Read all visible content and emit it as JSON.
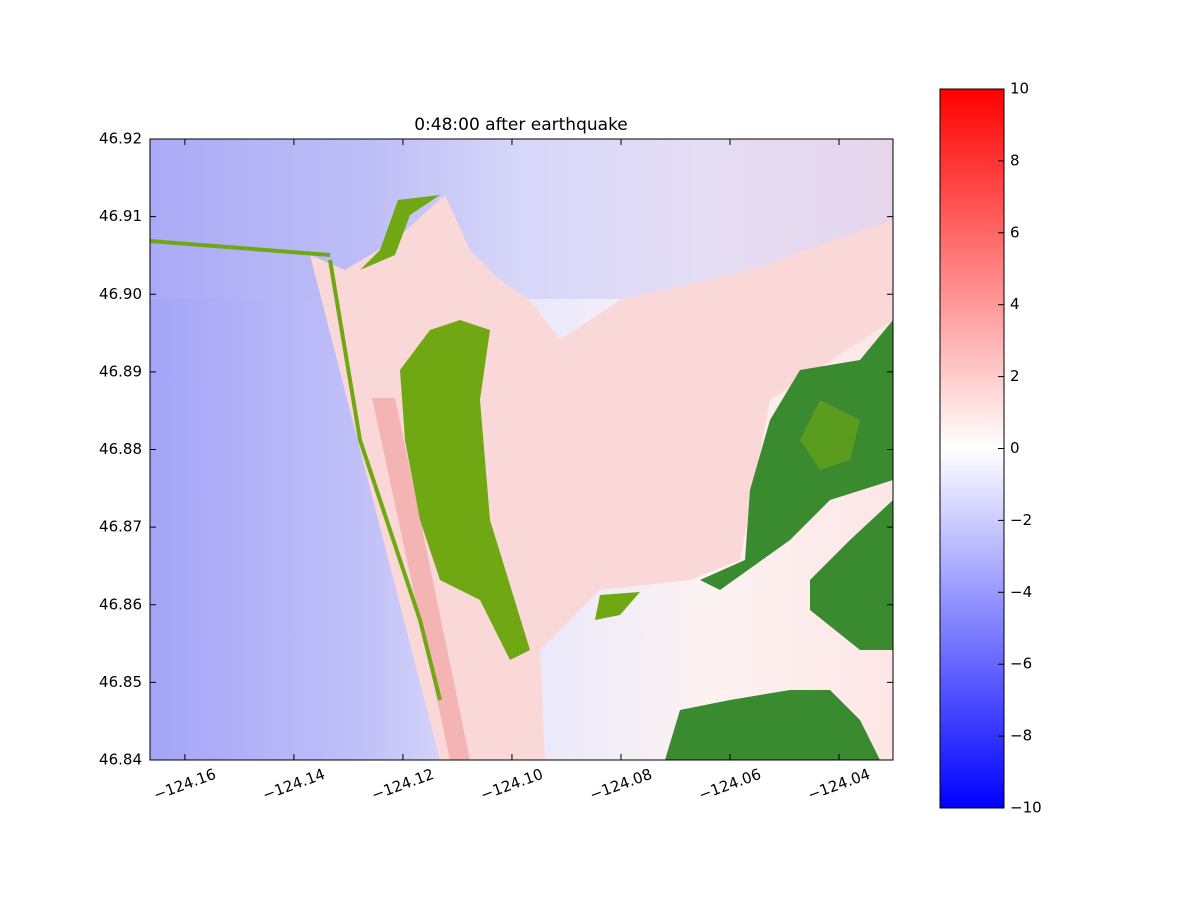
{
  "chart_data": {
    "type": "heatmap",
    "title": "0:48:00 after earthquake",
    "xlim": [
      -124.1664,
      -124.0301
    ],
    "xticks": [
      {
        "value": -124.16,
        "label": "−124.16"
      },
      {
        "value": -124.14,
        "label": "−124.14"
      },
      {
        "value": -124.12,
        "label": "−124.12"
      },
      {
        "value": -124.1,
        "label": "−124.10"
      },
      {
        "value": -124.08,
        "label": "−124.08"
      },
      {
        "value": -124.06,
        "label": "−124.06"
      },
      {
        "value": -124.04,
        "label": "−124.04"
      }
    ],
    "ylim": [
      46.84,
      46.92
    ],
    "yticks": [
      46.84,
      46.85,
      46.86,
      46.87,
      46.88,
      46.89,
      {
        "value": 46.9,
        "label": "46.90"
      },
      46.91,
      46.92
    ],
    "colorbar": {
      "lim": [
        -10,
        10
      ],
      "colors": [
        "#0000ff",
        "#ffffff",
        "#ff0000"
      ],
      "ticks": [
        {
          "value": -10,
          "label": "−10"
        },
        {
          "value": -8,
          "label": "−8"
        },
        {
          "value": -6,
          "label": "−6"
        },
        {
          "value": -4,
          "label": "−4"
        },
        {
          "value": -2,
          "label": "−2"
        },
        0,
        2,
        4,
        6,
        8,
        10
      ]
    }
  }
}
